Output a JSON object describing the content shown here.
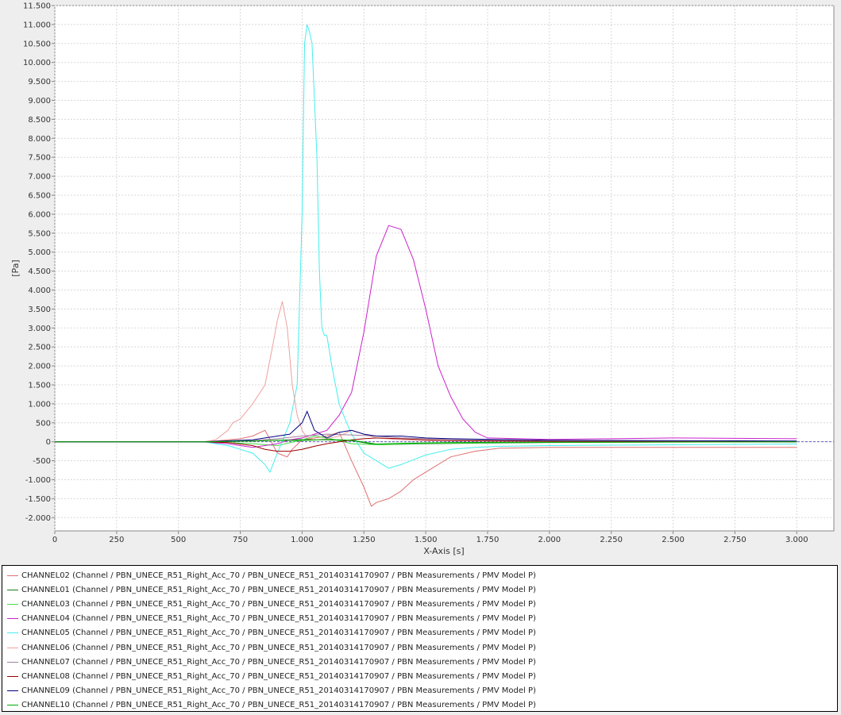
{
  "chart_data": {
    "type": "line",
    "title": "",
    "xlabel": "X-Axis [s]",
    "ylabel": "[Pa]",
    "xlim": [
      0,
      3150
    ],
    "ylim": [
      -2350,
      11500
    ],
    "grid": true,
    "legend_position": "bottom",
    "x_ticks": [
      0,
      250,
      500,
      750,
      1000,
      1250,
      1500,
      1750,
      2000,
      2250,
      2500,
      2750,
      3000
    ],
    "x_tick_labels": [
      "0",
      "250",
      "500",
      "750",
      "1.000",
      "1.250",
      "1.500",
      "1.750",
      "2.000",
      "2.250",
      "2.500",
      "2.750",
      "3.000"
    ],
    "y_ticks": [
      -2000,
      -1500,
      -1000,
      -500,
      0,
      500,
      1000,
      1500,
      2000,
      2500,
      3000,
      3500,
      4000,
      4500,
      5000,
      5500,
      6000,
      6500,
      7000,
      7500,
      8000,
      8500,
      9000,
      9500,
      10000,
      10500,
      11000,
      11500
    ],
    "y_tick_labels": [
      "-2.000",
      "-1.500",
      "-1.000",
      "-500",
      "0",
      "500",
      "1.000",
      "1.500",
      "2.000",
      "2.500",
      "3.000",
      "3.500",
      "4.000",
      "4.500",
      "5.000",
      "5.500",
      "6.000",
      "6.500",
      "7.000",
      "7.500",
      "8.000",
      "8.500",
      "9.000",
      "9.500",
      "10.000",
      "10.500",
      "11.000",
      "11.500"
    ],
    "series": [
      {
        "name": "CHANNEL02 (Channel / PBN_UNECE_R51_Right_Acc_70 / PBN_UNECE_R51_20140314170907 / PBN Measurements / PMV Model P)",
        "color": "#e07070",
        "x": [
          0,
          500,
          600,
          650,
          700,
          750,
          800,
          850,
          900,
          920,
          940,
          960,
          1000,
          1050,
          1100,
          1150,
          1200,
          1250,
          1280,
          1300,
          1350,
          1400,
          1450,
          1500,
          1600,
          1700,
          1800,
          2000,
          2500,
          3000
        ],
        "y": [
          0,
          0,
          0,
          20,
          50,
          80,
          150,
          300,
          -300,
          -350,
          -400,
          -200,
          50,
          100,
          150,
          250,
          -500,
          -1200,
          -1700,
          -1600,
          -1500,
          -1300,
          -1000,
          -800,
          -400,
          -250,
          -170,
          -150,
          -150,
          -150
        ]
      },
      {
        "name": "CHANNEL01 (Channel / PBN_UNECE_R51_Right_Acc_70 / PBN_UNECE_R51_20140314170907 / PBN Measurements / PMV Model P)",
        "color": "#1a7a1a",
        "x": [
          0,
          600,
          700,
          800,
          900,
          1000,
          1100,
          1200,
          1300,
          1500,
          2000,
          3000
        ],
        "y": [
          0,
          0,
          10,
          20,
          40,
          60,
          50,
          30,
          -80,
          -50,
          -20,
          0
        ]
      },
      {
        "name": "CHANNEL03 (Channel / PBN_UNECE_R51_Right_Acc_70 / PBN_UNECE_R51_20140314170907 / PBN Measurements / PMV Model P)",
        "color": "#44dd44",
        "x": [
          0,
          600,
          700,
          800,
          900,
          1000,
          1050,
          1100,
          1200,
          1300,
          1400,
          1500,
          2000,
          3000
        ],
        "y": [
          0,
          0,
          -20,
          -50,
          -100,
          50,
          150,
          100,
          -50,
          -80,
          -60,
          -40,
          -10,
          0
        ]
      },
      {
        "name": "CHANNEL04 (Channel / PBN_UNECE_R51_Right_Acc_70 / PBN_UNECE_R51_20140314170907 / PBN Measurements / PMV Model P)",
        "color": "#cc22cc",
        "x": [
          0,
          500,
          600,
          700,
          750,
          800,
          850,
          900,
          950,
          1000,
          1050,
          1100,
          1150,
          1200,
          1250,
          1300,
          1350,
          1400,
          1450,
          1500,
          1550,
          1600,
          1650,
          1700,
          1750,
          2000,
          2500,
          3000
        ],
        "y": [
          0,
          0,
          0,
          -50,
          -100,
          -150,
          -100,
          -50,
          50,
          100,
          200,
          300,
          700,
          1300,
          2900,
          4900,
          5700,
          5600,
          4800,
          3500,
          2000,
          1200,
          600,
          250,
          100,
          60,
          100,
          80
        ]
      },
      {
        "name": "CHANNEL05 (Channel / PBN_UNECE_R51_Right_Acc_70 / PBN_UNECE_R51_20140314170907 / PBN Measurements / PMV Model P)",
        "color": "#44eeee",
        "x": [
          0,
          600,
          700,
          750,
          800,
          850,
          870,
          900,
          950,
          980,
          1000,
          1010,
          1020,
          1030,
          1040,
          1050,
          1060,
          1070,
          1080,
          1090,
          1100,
          1120,
          1150,
          1180,
          1200,
          1250,
          1300,
          1350,
          1400,
          1500,
          1600,
          1700,
          1800,
          2000,
          2500,
          3000
        ],
        "y": [
          0,
          0,
          -100,
          -200,
          -300,
          -600,
          -800,
          -300,
          500,
          1500,
          6000,
          10500,
          11000,
          10800,
          10500,
          9000,
          7500,
          4500,
          3000,
          2800,
          2800,
          2000,
          1000,
          500,
          200,
          -300,
          -500,
          -700,
          -600,
          -350,
          -200,
          -150,
          -120,
          -100,
          -80,
          -60
        ]
      },
      {
        "name": "CHANNEL06 (Channel / PBN_UNECE_R51_Right_Acc_70 / PBN_UNECE_R51_20140314170907 / PBN Measurements / PMV Model P)",
        "color": "#f0a0a0",
        "x": [
          0,
          600,
          650,
          700,
          720,
          750,
          800,
          850,
          880,
          900,
          920,
          940,
          960,
          980,
          1000,
          1020,
          1050,
          1100,
          1150,
          1200,
          1300,
          1400,
          1500,
          2000,
          3000
        ],
        "y": [
          0,
          0,
          50,
          300,
          500,
          600,
          1000,
          1500,
          2500,
          3200,
          3700,
          3000,
          1500,
          700,
          300,
          100,
          50,
          80,
          150,
          300,
          100,
          50,
          30,
          10,
          0
        ]
      },
      {
        "name": "CHANNEL07 (Channel / PBN_UNECE_R51_Right_Acc_70 / PBN_UNECE_R51_20140314170907 / PBN Measurements / PMV Model P)",
        "color": "#a080a0",
        "x": [
          0,
          600,
          800,
          900,
          1000,
          1100,
          1200,
          1300,
          1400,
          1600,
          2000,
          3000
        ],
        "y": [
          0,
          0,
          30,
          80,
          150,
          200,
          180,
          150,
          100,
          60,
          20,
          0
        ]
      },
      {
        "name": "CHANNEL08 (Channel / PBN_UNECE_R51_Right_Acc_70 / PBN_UNECE_R51_20140314170907 / PBN Measurements / PMV Model P)",
        "color": "#990000",
        "x": [
          0,
          600,
          700,
          800,
          850,
          900,
          950,
          1000,
          1050,
          1100,
          1150,
          1200,
          1250,
          1300,
          1400,
          1500,
          1600,
          2000,
          3000
        ],
        "y": [
          0,
          0,
          -20,
          -100,
          -200,
          -250,
          -250,
          -200,
          -120,
          -50,
          0,
          50,
          80,
          100,
          80,
          50,
          30,
          10,
          0
        ]
      },
      {
        "name": "CHANNEL09 (Channel / PBN_UNECE_R51_Right_Acc_70 / PBN_UNECE_R51_20140314170907 / PBN Measurements / PMV Model P)",
        "color": "#000080",
        "x": [
          0,
          600,
          800,
          850,
          900,
          950,
          1000,
          1020,
          1050,
          1100,
          1150,
          1200,
          1250,
          1300,
          1350,
          1400,
          1500,
          1600,
          2000,
          2500,
          3000
        ],
        "y": [
          0,
          0,
          50,
          100,
          150,
          200,
          500,
          800,
          300,
          100,
          250,
          300,
          200,
          150,
          150,
          150,
          100,
          80,
          40,
          30,
          20
        ]
      },
      {
        "name": "CHANNEL10 (Channel / PBN_UNECE_R51_Right_Acc_70 / PBN_UNECE_R51_20140314170907 / PBN Measurements / PMV Model P)",
        "color": "#00aa00",
        "x": [
          0,
          600,
          800,
          900,
          1000,
          1100,
          1200,
          1300,
          1400,
          1600,
          2000,
          3000
        ],
        "y": [
          0,
          0,
          20,
          40,
          30,
          60,
          40,
          -60,
          -40,
          -20,
          -10,
          0
        ]
      }
    ]
  }
}
